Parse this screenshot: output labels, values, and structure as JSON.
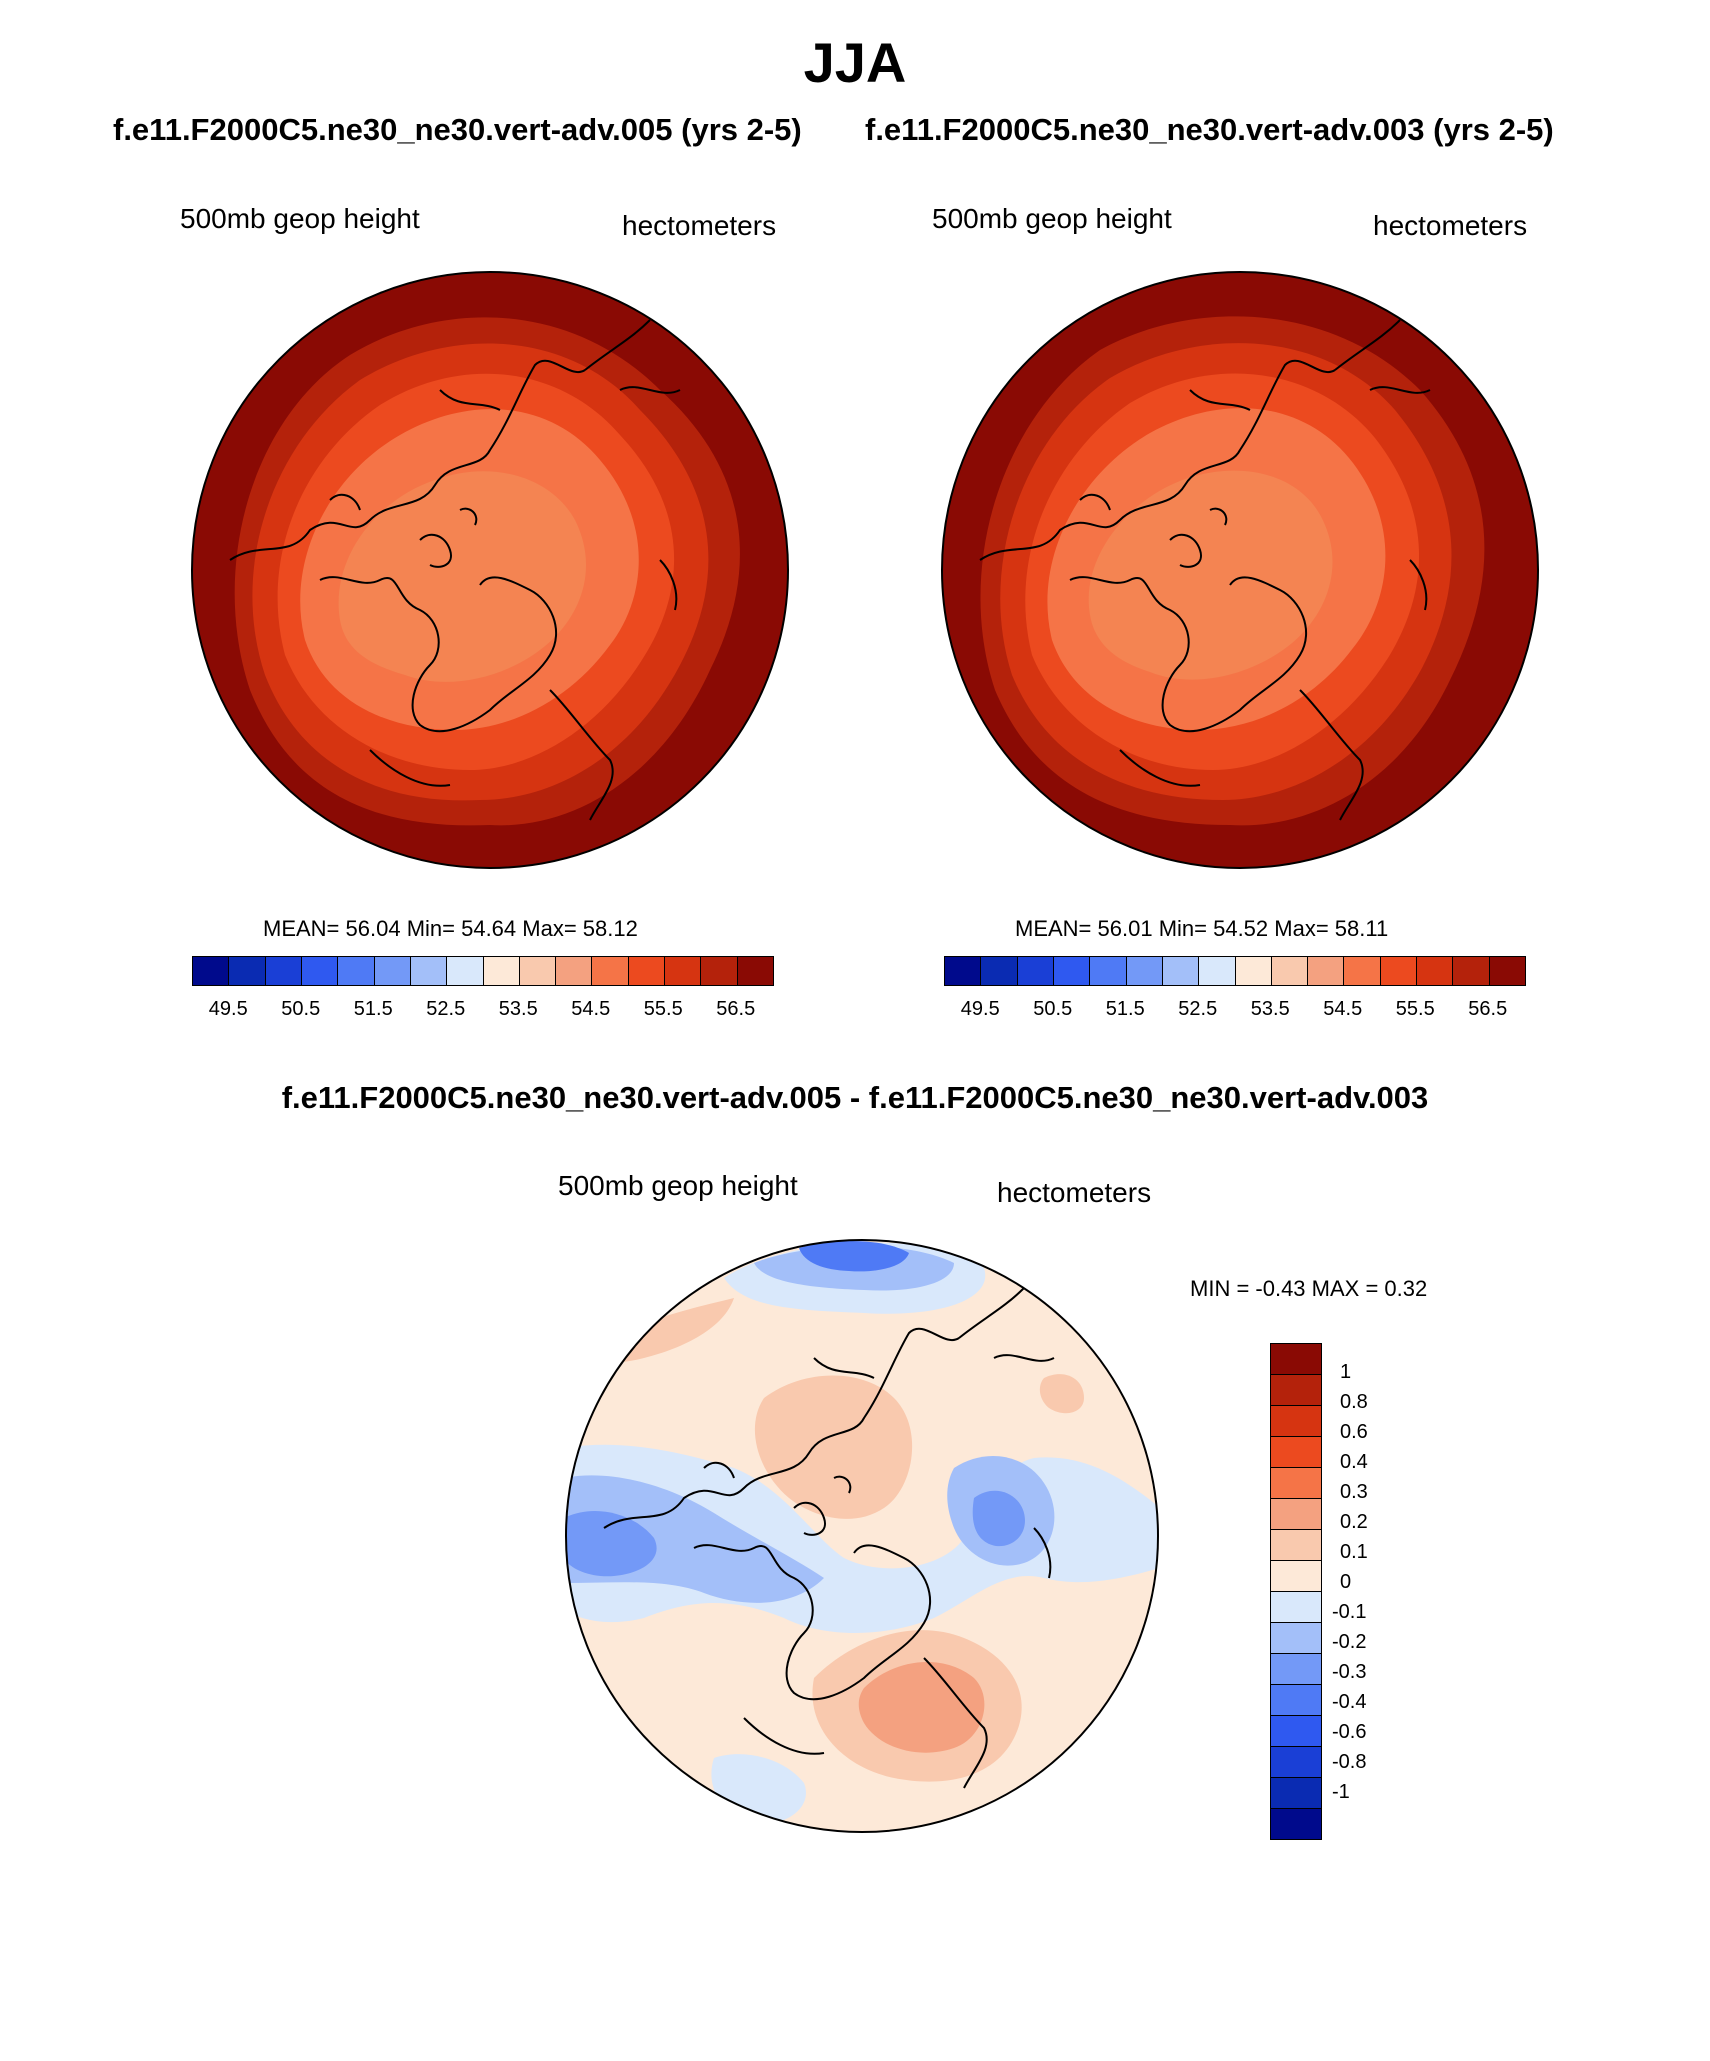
{
  "figure": {
    "title": "JJA",
    "subtitle_left": "f.e11.F2000C5.ne30_ne30.vert-adv.005 (yrs 2-5)",
    "subtitle_right": "f.e11.F2000C5.ne30_ne30.vert-adv.003 (yrs 2-5)",
    "diff_title": "f.e11.F2000C5.ne30_ne30.vert-adv.005 - f.e11.F2000C5.ne30_ne30.vert-adv.003"
  },
  "panels": {
    "left": {
      "variable": "500mb geop height",
      "units": "hectometers",
      "stats_text": "MEAN=  56.04  Min=  54.64  Max=  58.12"
    },
    "right": {
      "variable": "500mb geop height",
      "units": "hectometers",
      "stats_text": "MEAN=  56.01  Min=  54.52  Max=  58.11"
    },
    "diff": {
      "variable": "500mb geop height",
      "units": "hectometers",
      "minmax_text": "MIN =  -0.43 MAX =   0.32"
    }
  },
  "abs_colorbar": {
    "colors": [
      "#000a8c",
      "#0a2bb2",
      "#1a3fd6",
      "#2f59f0",
      "#4f7af5",
      "#7399f7",
      "#a3bff9",
      "#d9e8fb",
      "#fde9d8",
      "#f9c9ae",
      "#f4a180",
      "#f57447",
      "#ec4a1f",
      "#d63411",
      "#b4220b",
      "#8a0a04"
    ],
    "tick_labels": [
      "49.5",
      "50.5",
      "51.5",
      "52.5",
      "53.5",
      "54.5",
      "55.5",
      "56.5"
    ]
  },
  "diff_colorbar": {
    "colors": [
      "#8a0a04",
      "#b4220b",
      "#d63411",
      "#ec4a1f",
      "#f57447",
      "#f4a180",
      "#f9c9ae",
      "#fde9d8",
      "#d9e8fb",
      "#a3bff9",
      "#7399f7",
      "#4f7af5",
      "#2f59f0",
      "#1a3fd6",
      "#0a2bb2",
      "#000a8c"
    ],
    "tick_labels": [
      "1",
      "0.8",
      "0.6",
      "0.4",
      "0.3",
      "0.2",
      "0.1",
      "0",
      "-0.1",
      "-0.2",
      "-0.3",
      "-0.4",
      "-0.6",
      "-0.8",
      "-1"
    ]
  },
  "map_colors": {
    "zone_outer": "#8a0a04",
    "zone_2": "#b4220b",
    "zone_3": "#d63411",
    "zone_4": "#ec4a1f",
    "zone_5": "#f57447",
    "zone_center": "#f48452",
    "diff_bg": "#fde9d8",
    "diff_pos1": "#f9c9ae",
    "diff_pos2": "#f4a180",
    "diff_neg1": "#d9e8fb",
    "diff_neg2": "#a3bff9",
    "diff_neg3": "#7399f7",
    "diff_neg4": "#4f7af5"
  }
}
